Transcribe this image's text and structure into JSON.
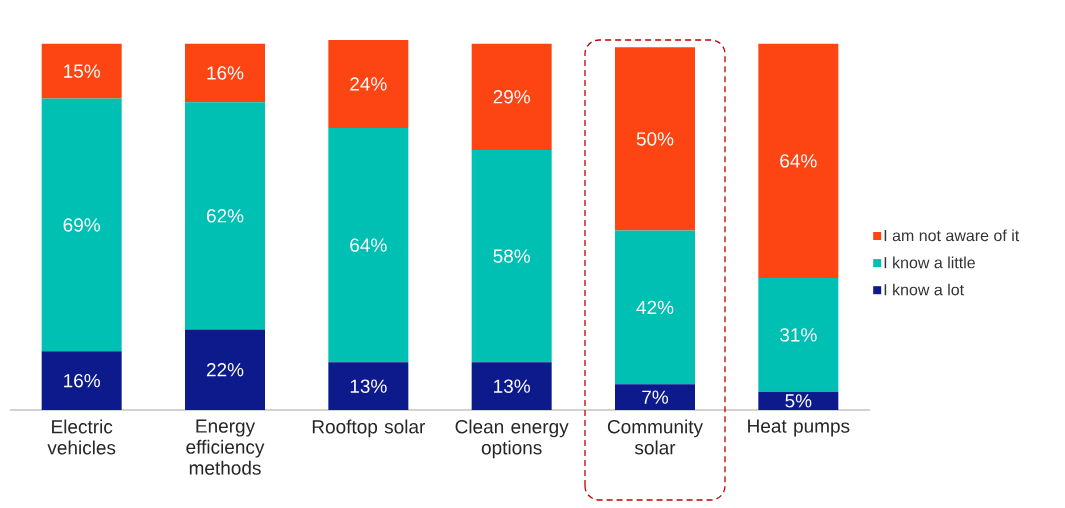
{
  "chart_data": {
    "type": "bar",
    "stacked": true,
    "categories": [
      "Electric vehicles",
      "Energy efficiency methods",
      "Rooftop solar",
      "Clean energy options",
      "Community solar",
      "Heat pumps"
    ],
    "series": [
      {
        "name": "I know a lot",
        "color": "#0c1a8c",
        "values": [
          16,
          22,
          13,
          13,
          7,
          5
        ],
        "value_labels": [
          "16%",
          "22%",
          "13%",
          "13%",
          "7%",
          "5%"
        ]
      },
      {
        "name": "I know a little",
        "color": "#00bfb3",
        "values": [
          69,
          62,
          64,
          58,
          42,
          31
        ],
        "value_labels": [
          "69%",
          "62%",
          "64%",
          "58%",
          "42%",
          "31%"
        ]
      },
      {
        "name": "I am not aware of it",
        "color": "#fc4512",
        "values": [
          15,
          16,
          24,
          29,
          50,
          64
        ],
        "value_labels": [
          "15%",
          "16%",
          "24%",
          "29%",
          "50%",
          "64%"
        ]
      }
    ],
    "legend": "right"
  }
}
